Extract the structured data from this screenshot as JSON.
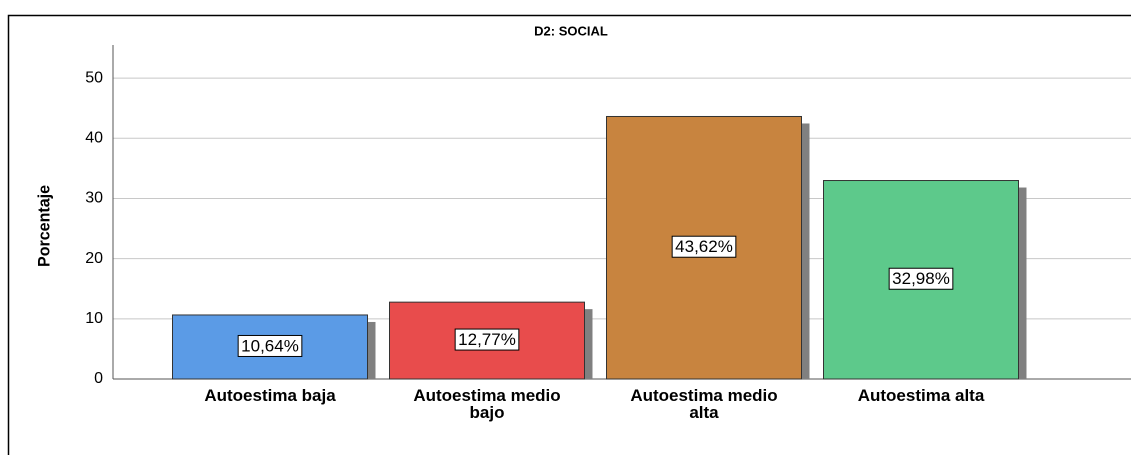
{
  "chart_data": {
    "type": "bar",
    "title": "D2: SOCIAL",
    "ylabel": "Porcentaje",
    "categories": [
      "Autoestima baja",
      "Autoestima medio bajo",
      "Autoestima medio alta",
      "Autoestima alta"
    ],
    "values": [
      10.64,
      12.77,
      43.62,
      32.98
    ],
    "value_labels": [
      "10,64%",
      "12,77%",
      "43,62%",
      "32,98%"
    ],
    "colors": [
      "#5b9be6",
      "#e84c4c",
      "#c8843f",
      "#5dc98b"
    ],
    "ylim": [
      0,
      55
    ],
    "yticks": [
      0,
      10,
      20,
      30,
      40,
      50
    ],
    "grid": true
  }
}
